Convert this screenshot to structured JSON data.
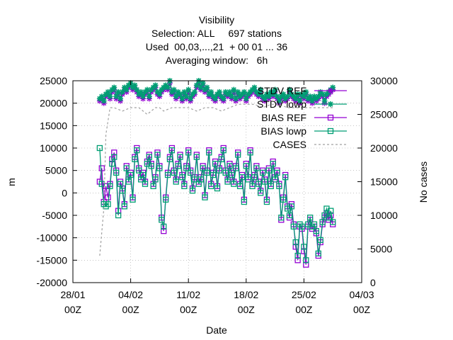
{
  "chart_data": {
    "type": "line",
    "title_lines": [
      "Visibility",
      "Selection: ALL     697 stations",
      "Used  00,03,...,21  + 00 01 ... 36",
      "Averaging window:   6h"
    ],
    "xlabel": "Date",
    "ylabel": "m",
    "y2label": "No cases",
    "ylim": [
      -20000,
      25000
    ],
    "y2lim": [
      0,
      30000
    ],
    "xlim": [
      "28/01 00Z",
      "04/03 00Z"
    ],
    "yticks": [
      "-20000",
      "-15000",
      "-10000",
      "-5000",
      "0",
      "5000",
      "10000",
      "15000",
      "20000",
      "25000"
    ],
    "y2ticks": [
      "0",
      "5000",
      "10000",
      "15000",
      "20000",
      "25000",
      "30000"
    ],
    "xticks": [
      {
        "date": "28/01",
        "time": "00Z"
      },
      {
        "date": "04/02",
        "time": "00Z"
      },
      {
        "date": "11/02",
        "time": "00Z"
      },
      {
        "date": "18/02",
        "time": "00Z"
      },
      {
        "date": "25/02",
        "time": "00Z"
      },
      {
        "date": "04/03",
        "time": "00Z"
      }
    ],
    "grid": true,
    "legend_position": "top-right",
    "series": [
      {
        "name": "STDV REF",
        "axis": "y",
        "color": "#9400d3",
        "marker": "cross",
        "x": [
          3.25,
          3.5,
          3.75,
          4,
          4.25,
          4.5,
          4.75,
          5,
          5.25,
          5.5,
          5.75,
          6,
          6.25,
          6.5,
          6.75,
          7,
          7.25,
          7.5,
          7.75,
          8,
          8.25,
          8.5,
          8.75,
          9,
          9.25,
          9.5,
          9.75,
          10,
          10.25,
          10.5,
          10.75,
          11,
          11.25,
          11.5,
          11.75,
          12,
          12.25,
          12.5,
          12.75,
          13,
          13.25,
          13.5,
          13.75,
          14,
          14.25,
          14.5,
          14.75,
          15,
          15.25,
          15.5,
          15.75,
          16,
          16.25,
          16.5,
          16.75,
          17,
          17.25,
          17.5,
          17.75,
          18,
          18.25,
          18.5,
          18.75,
          19,
          19.25,
          19.5,
          19.75,
          20,
          20.25,
          20.5,
          20.75,
          21,
          21.25,
          21.5,
          21.75,
          22,
          22.25,
          22.5,
          22.75,
          23,
          23.25,
          23.5,
          23.75,
          24,
          24.25,
          24.5,
          24.75,
          25,
          25.25,
          25.5,
          25.75,
          26,
          26.25,
          26.5,
          26.75,
          27,
          27.25,
          27.5,
          27.75,
          28,
          28.25,
          28.5,
          28.75,
          29,
          29.25,
          29.5,
          29.75,
          30,
          30.25,
          30.5,
          30.75,
          31,
          31.25,
          31.5
        ],
        "y": [
          20500,
          21000,
          20000,
          21500,
          22000,
          21000,
          22500,
          23000,
          21000,
          22000,
          20500,
          22000,
          23000,
          22500,
          23500,
          24000,
          23000,
          23500,
          22500,
          21500,
          22000,
          21000,
          22000,
          22500,
          21000,
          22500,
          23000,
          23500,
          22000,
          21500,
          22500,
          23000,
          23500,
          23000,
          24500,
          22000,
          22500,
          21000,
          22000,
          21500,
          20500,
          22000,
          21000,
          22500,
          20500,
          21500,
          22000,
          23500,
          24500,
          23000,
          24000,
          22500,
          23000,
          21500,
          22000,
          21000,
          20500,
          21500,
          22000,
          21000,
          20500,
          22000,
          21500,
          22000,
          21000,
          22500,
          20500,
          22000,
          21000,
          21500,
          22000,
          20500,
          21500,
          22000,
          22500,
          23000,
          22000,
          21500,
          22500,
          21000,
          20500,
          21500,
          21000,
          22000,
          21500,
          22500,
          21000,
          20000,
          21000,
          21500,
          20500,
          21000,
          22500,
          21500,
          21000,
          20500,
          21500,
          20000,
          21500,
          21000,
          22000,
          20500,
          21000,
          20000,
          21000,
          20500,
          21000,
          22000,
          21500,
          20000,
          21500,
          22000,
          22500,
          23000
        ]
      },
      {
        "name": "STDV lowp",
        "axis": "y",
        "color": "#009e73",
        "marker": "star",
        "x": [
          3.25,
          3.5,
          3.75,
          4,
          4.25,
          4.5,
          4.75,
          5,
          5.25,
          5.5,
          5.75,
          6,
          6.25,
          6.5,
          6.75,
          7,
          7.25,
          7.5,
          7.75,
          8,
          8.25,
          8.5,
          8.75,
          9,
          9.25,
          9.5,
          9.75,
          10,
          10.25,
          10.5,
          10.75,
          11,
          11.25,
          11.5,
          11.75,
          12,
          12.25,
          12.5,
          12.75,
          13,
          13.25,
          13.5,
          13.75,
          14,
          14.25,
          14.5,
          14.75,
          15,
          15.25,
          15.5,
          15.75,
          16,
          16.25,
          16.5,
          16.75,
          17,
          17.25,
          17.5,
          17.75,
          18,
          18.25,
          18.5,
          18.75,
          19,
          19.25,
          19.5,
          19.75,
          20,
          20.25,
          20.5,
          20.75,
          21,
          21.25,
          21.5,
          21.75,
          22,
          22.25,
          22.5,
          22.75,
          23,
          23.25,
          23.5,
          23.75,
          24,
          24.25,
          24.5,
          24.75,
          25,
          25.25,
          25.5,
          25.75,
          26,
          26.25,
          26.5,
          26.75,
          27,
          27.25,
          27.5,
          27.75,
          28,
          28.25,
          28.5,
          28.75,
          29,
          29.25,
          29.5,
          29.75,
          30,
          30.25,
          30.5,
          30.75,
          31,
          31.25,
          31.5
        ],
        "y": [
          21000,
          21500,
          20500,
          22000,
          22500,
          21500,
          23000,
          23500,
          21500,
          22500,
          21000,
          22500,
          23500,
          23000,
          24000,
          24500,
          23500,
          24000,
          23000,
          22000,
          22500,
          21500,
          22500,
          23000,
          21500,
          23000,
          23500,
          24000,
          22500,
          22000,
          23000,
          23500,
          24000,
          23500,
          25000,
          22500,
          23000,
          21500,
          22500,
          22000,
          21000,
          22500,
          21500,
          23000,
          21000,
          22000,
          22500,
          24000,
          25000,
          23500,
          24500,
          23000,
          23500,
          22000,
          22500,
          21500,
          21000,
          22000,
          22500,
          21500,
          21000,
          22500,
          22000,
          22500,
          21500,
          23000,
          21000,
          22500,
          21500,
          22000,
          22500,
          21000,
          22000,
          22500,
          23000,
          23500,
          22500,
          22000,
          23000,
          21500,
          21000,
          22000,
          21500,
          22500,
          22000,
          23000,
          21500,
          20500,
          21500,
          22000,
          21000,
          21500,
          23000,
          22000,
          21500,
          21000,
          22000,
          20500,
          22000,
          21500,
          22500,
          21000,
          21500,
          20500,
          21500,
          21000,
          21500,
          22500,
          22000,
          20500,
          22000,
          22500,
          23000,
          23500
        ]
      },
      {
        "name": "BIAS REF",
        "axis": "y",
        "color": "#9400d3",
        "marker": "square",
        "x": [
          3.25,
          3.5,
          3.75,
          4,
          4.25,
          4.5,
          4.75,
          5,
          5.25,
          5.5,
          5.75,
          6,
          6.25,
          6.5,
          6.75,
          7,
          7.25,
          7.5,
          7.75,
          8,
          8.25,
          8.5,
          8.75,
          9,
          9.25,
          9.5,
          9.75,
          10,
          10.25,
          10.5,
          10.75,
          11,
          11.25,
          11.5,
          11.75,
          12,
          12.25,
          12.5,
          12.75,
          13,
          13.25,
          13.5,
          13.75,
          14,
          14.25,
          14.5,
          14.75,
          15,
          15.25,
          15.5,
          15.75,
          16,
          16.25,
          16.5,
          16.75,
          17,
          17.25,
          17.5,
          17.75,
          18,
          18.25,
          18.5,
          18.75,
          19,
          19.25,
          19.5,
          19.75,
          20,
          20.25,
          20.5,
          20.75,
          21,
          21.25,
          21.5,
          21.75,
          22,
          22.25,
          22.5,
          22.75,
          23,
          23.25,
          23.5,
          23.75,
          24,
          24.25,
          24.5,
          24.75,
          25,
          25.25,
          25.5,
          25.75,
          26,
          26.25,
          26.5,
          26.75,
          27,
          27.25,
          27.5,
          27.75,
          28,
          28.25,
          28.5,
          28.75,
          29,
          29.25,
          29.5,
          29.75,
          30,
          30.25,
          30.5,
          30.75,
          31,
          31.25,
          31.5
        ],
        "y": [
          2500,
          5500,
          -2000,
          1500,
          -1000,
          2000,
          7500,
          9000,
          5000,
          -4000,
          2500,
          1000,
          -2500,
          6000,
          3000,
          4500,
          -1000,
          8000,
          10000,
          5500,
          3500,
          4500,
          2500,
          7000,
          8500,
          6500,
          2000,
          3500,
          9000,
          6000,
          -5500,
          -8500,
          -1000,
          4500,
          8000,
          10000,
          5000,
          3000,
          6500,
          8500,
          4000,
          2000,
          6000,
          9500,
          5000,
          1000,
          3500,
          8500,
          2500,
          3500,
          6000,
          -500,
          5000,
          9500,
          2000,
          4500,
          7000,
          1500,
          5500,
          8000,
          10000,
          5000,
          3000,
          6500,
          4500,
          2500,
          6000,
          9000,
          2000,
          4000,
          -1500,
          6500,
          3500,
          9500,
          2000,
          4000,
          6000,
          2500,
          500,
          5000,
          3000,
          -1500,
          5500,
          2000,
          7000,
          3500,
          5000,
          2000,
          -6000,
          -1000,
          4000,
          -3000,
          -5500,
          -2500,
          -7000,
          -12000,
          -15000,
          -7500,
          -8000,
          -13000,
          -16000,
          -7500,
          -6000,
          -8000,
          -7500,
          -9000,
          -14000,
          -11000,
          -7000,
          -5500,
          -4500,
          -6000,
          -5000,
          -7000
        ]
      },
      {
        "name": "BIAS lowp",
        "axis": "y",
        "color": "#009e73",
        "marker": "square-dot",
        "x": [
          3.25,
          3.5,
          3.75,
          4,
          4.25,
          4.5,
          4.75,
          5,
          5.25,
          5.5,
          5.75,
          6,
          6.25,
          6.5,
          6.75,
          7,
          7.25,
          7.5,
          7.75,
          8,
          8.25,
          8.5,
          8.75,
          9,
          9.25,
          9.5,
          9.75,
          10,
          10.25,
          10.5,
          10.75,
          11,
          11.25,
          11.5,
          11.75,
          12,
          12.25,
          12.5,
          12.75,
          13,
          13.25,
          13.5,
          13.75,
          14,
          14.25,
          14.5,
          14.75,
          15,
          15.25,
          15.5,
          15.75,
          16,
          16.25,
          16.5,
          16.75,
          17,
          17.25,
          17.5,
          17.75,
          18,
          18.25,
          18.5,
          18.75,
          19,
          19.25,
          19.5,
          19.75,
          20,
          20.25,
          20.5,
          20.75,
          21,
          21.25,
          21.5,
          21.75,
          22,
          22.25,
          22.5,
          22.75,
          23,
          23.25,
          23.5,
          23.75,
          24,
          24.25,
          24.5,
          24.75,
          25,
          25.25,
          25.5,
          25.75,
          26,
          26.25,
          26.5,
          26.75,
          27,
          27.25,
          27.5,
          27.75,
          28,
          28.25,
          28.5,
          28.75,
          29,
          29.25,
          29.5,
          29.75,
          30,
          30.25,
          30.5,
          30.75,
          31,
          31.25,
          31.5
        ],
        "y": [
          10000,
          2000,
          -2500,
          -3000,
          -2500,
          1500,
          6500,
          8000,
          4500,
          -5000,
          2000,
          500,
          -3000,
          5500,
          2500,
          4000,
          -1500,
          7500,
          9500,
          5000,
          3000,
          4000,
          2000,
          6500,
          8000,
          6000,
          1500,
          3000,
          8500,
          5500,
          -6000,
          -7500,
          -1500,
          4000,
          7500,
          9500,
          4500,
          2500,
          6000,
          8000,
          3500,
          1500,
          5500,
          9000,
          4500,
          500,
          3000,
          8000,
          2000,
          3000,
          5500,
          -1000,
          4500,
          9000,
          1500,
          4000,
          6500,
          1000,
          5000,
          7500,
          9500,
          4500,
          2500,
          6000,
          4000,
          2000,
          5500,
          8500,
          1500,
          3500,
          -2000,
          6000,
          3000,
          9000,
          1500,
          3500,
          5500,
          2000,
          0,
          4500,
          2500,
          -2000,
          5000,
          1500,
          6500,
          3000,
          4500,
          1500,
          -5500,
          -1500,
          3500,
          -3500,
          -5000,
          -3000,
          -7500,
          -11000,
          -14000,
          -7000,
          -7500,
          -12000,
          -15000,
          -7000,
          -5500,
          -7500,
          -7000,
          -8500,
          -13500,
          -10500,
          -6500,
          -5000,
          -3500,
          -5500,
          -4000,
          -6500
        ]
      },
      {
        "name": "CASES",
        "axis": "y2",
        "color": "#a0a0a0",
        "marker": "none",
        "x": [
          3.25,
          3.75,
          4,
          4.5,
          5,
          6,
          7,
          8,
          9,
          10,
          10.5,
          11,
          12,
          13,
          14,
          15,
          16,
          17,
          18,
          19,
          20,
          21,
          22,
          23,
          24,
          25,
          26,
          27,
          28,
          29,
          30,
          31,
          31.5
        ],
        "y": [
          4000,
          11000,
          22000,
          26000,
          26000,
          25500,
          26000,
          26000,
          25000,
          26000,
          26000,
          25500,
          26000,
          26000,
          26000,
          25500,
          26000,
          26000,
          25500,
          26000,
          26500,
          26500,
          26500,
          26000,
          26500,
          26500,
          26000,
          26000,
          26000,
          26000,
          26000,
          26000,
          26000
        ]
      }
    ]
  }
}
